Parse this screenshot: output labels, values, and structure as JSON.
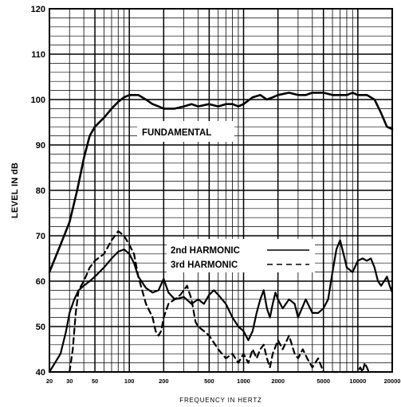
{
  "chart_data": {
    "type": "line",
    "xscale": "log",
    "xlim": [
      20,
      20000
    ],
    "ylim": [
      40,
      120
    ],
    "grid": true,
    "xlabel": "FREQUENCY IN HERTZ",
    "ylabel": "LEVEL IN dB",
    "x_ticks": [
      20,
      30,
      50,
      100,
      200,
      500,
      1000,
      2000,
      5000,
      10000,
      20000
    ],
    "x_tick_labels": [
      "20",
      "30",
      "50",
      "100",
      "200",
      "500",
      "1000",
      "2000",
      "5000",
      "10000",
      "20000"
    ],
    "y_ticks": [
      40,
      50,
      60,
      70,
      80,
      90,
      100,
      110,
      120
    ],
    "y_tick_labels": [
      "40",
      "50",
      "60",
      "70",
      "80",
      "90",
      "100",
      "110",
      "120"
    ],
    "annotations": {
      "fundamental": "FUNDAMENTAL",
      "second_harmonic": "2nd HARMONIC",
      "third_harmonic": "3rd  HARMONIC"
    },
    "series": [
      {
        "name": "FUNDAMENTAL",
        "style": "solid",
        "points": [
          [
            20,
            62
          ],
          [
            25,
            68
          ],
          [
            30,
            73
          ],
          [
            35,
            80
          ],
          [
            40,
            87
          ],
          [
            45,
            92
          ],
          [
            50,
            94
          ],
          [
            60,
            96
          ],
          [
            70,
            98
          ],
          [
            80,
            99.5
          ],
          [
            90,
            100.5
          ],
          [
            100,
            101
          ],
          [
            110,
            101
          ],
          [
            120,
            101
          ],
          [
            140,
            100
          ],
          [
            160,
            99
          ],
          [
            180,
            98.5
          ],
          [
            200,
            98
          ],
          [
            250,
            98
          ],
          [
            300,
            98.5
          ],
          [
            350,
            99
          ],
          [
            400,
            98.5
          ],
          [
            500,
            99
          ],
          [
            600,
            98.5
          ],
          [
            700,
            99
          ],
          [
            800,
            99
          ],
          [
            900,
            98.5
          ],
          [
            1000,
            99
          ],
          [
            1200,
            100.5
          ],
          [
            1400,
            101
          ],
          [
            1600,
            100
          ],
          [
            1800,
            100.5
          ],
          [
            2000,
            101
          ],
          [
            2500,
            101.5
          ],
          [
            3000,
            101
          ],
          [
            3500,
            101
          ],
          [
            4000,
            101.5
          ],
          [
            5000,
            101.5
          ],
          [
            6000,
            101
          ],
          [
            7000,
            101
          ],
          [
            8000,
            101
          ],
          [
            9000,
            101.5
          ],
          [
            10000,
            101
          ],
          [
            12000,
            101
          ],
          [
            14000,
            100
          ],
          [
            16000,
            97
          ],
          [
            18000,
            94
          ],
          [
            20000,
            93.5
          ]
        ]
      },
      {
        "name": "2nd HARMONIC",
        "style": "solid",
        "points": [
          [
            20,
            40
          ],
          [
            25,
            44
          ],
          [
            28,
            49
          ],
          [
            30,
            53
          ],
          [
            33,
            56
          ],
          [
            36,
            58
          ],
          [
            40,
            59
          ],
          [
            45,
            60
          ],
          [
            50,
            61
          ],
          [
            60,
            63
          ],
          [
            70,
            65
          ],
          [
            80,
            66.5
          ],
          [
            90,
            67
          ],
          [
            100,
            66
          ],
          [
            110,
            64
          ],
          [
            120,
            61
          ],
          [
            140,
            58.5
          ],
          [
            160,
            57.5
          ],
          [
            180,
            58
          ],
          [
            200,
            60.5
          ],
          [
            220,
            57.5
          ],
          [
            250,
            56
          ],
          [
            300,
            56.5
          ],
          [
            350,
            55
          ],
          [
            400,
            56
          ],
          [
            450,
            55
          ],
          [
            500,
            57
          ],
          [
            550,
            58
          ],
          [
            600,
            57
          ],
          [
            700,
            55
          ],
          [
            800,
            52
          ],
          [
            900,
            50
          ],
          [
            1000,
            49
          ],
          [
            1100,
            47
          ],
          [
            1200,
            49
          ],
          [
            1300,
            53
          ],
          [
            1400,
            56
          ],
          [
            1500,
            58
          ],
          [
            1600,
            54
          ],
          [
            1700,
            52
          ],
          [
            1800,
            55
          ],
          [
            1900,
            57.5
          ],
          [
            2000,
            56
          ],
          [
            2200,
            54
          ],
          [
            2500,
            56
          ],
          [
            2800,
            55
          ],
          [
            3000,
            52
          ],
          [
            3500,
            56
          ],
          [
            4000,
            53
          ],
          [
            4500,
            53
          ],
          [
            5000,
            54
          ],
          [
            5500,
            56
          ],
          [
            6000,
            62
          ],
          [
            6500,
            67
          ],
          [
            7000,
            69
          ],
          [
            7500,
            66
          ],
          [
            8000,
            63
          ],
          [
            9000,
            62
          ],
          [
            10000,
            64.5
          ],
          [
            11000,
            65
          ],
          [
            12000,
            64.5
          ],
          [
            13000,
            65
          ],
          [
            14000,
            63
          ],
          [
            15000,
            60
          ],
          [
            16000,
            59
          ],
          [
            17000,
            60
          ],
          [
            18000,
            61
          ],
          [
            19000,
            59
          ],
          [
            20000,
            57.5
          ]
        ]
      },
      {
        "name": "3rd  HARMONIC",
        "style": "dashed",
        "points": [
          [
            30,
            40
          ],
          [
            32,
            45
          ],
          [
            34,
            53
          ],
          [
            36,
            58
          ],
          [
            40,
            60
          ],
          [
            45,
            63
          ],
          [
            50,
            64.5
          ],
          [
            60,
            66
          ],
          [
            70,
            69
          ],
          [
            80,
            71
          ],
          [
            90,
            70
          ],
          [
            100,
            68
          ],
          [
            110,
            66
          ],
          [
            120,
            61
          ],
          [
            140,
            55
          ],
          [
            160,
            52
          ],
          [
            170,
            49
          ],
          [
            180,
            48
          ],
          [
            190,
            49
          ],
          [
            200,
            52
          ],
          [
            220,
            55
          ],
          [
            250,
            56
          ],
          [
            280,
            57
          ],
          [
            300,
            58
          ],
          [
            320,
            59
          ],
          [
            350,
            56
          ],
          [
            380,
            51
          ],
          [
            400,
            50
          ],
          [
            450,
            49
          ],
          [
            500,
            48
          ],
          [
            600,
            45
          ],
          [
            700,
            43
          ],
          [
            800,
            44
          ],
          [
            900,
            42
          ],
          [
            1000,
            44
          ],
          [
            1100,
            42
          ],
          [
            1200,
            45
          ],
          [
            1300,
            43
          ],
          [
            1400,
            45
          ],
          [
            1500,
            46
          ],
          [
            1600,
            43
          ],
          [
            1700,
            41
          ],
          [
            1800,
            44
          ],
          [
            2000,
            47
          ],
          [
            2200,
            45
          ],
          [
            2500,
            48
          ],
          [
            2800,
            44
          ],
          [
            3000,
            43
          ],
          [
            3300,
            45
          ],
          [
            3600,
            43
          ],
          [
            4000,
            41
          ],
          [
            4500,
            43
          ],
          [
            5000,
            40
          ],
          [
            10000,
            40
          ],
          [
            10500,
            41
          ],
          [
            11000,
            40
          ],
          [
            11500,
            42
          ],
          [
            12000,
            41
          ],
          [
            12500,
            40
          ]
        ]
      }
    ]
  }
}
